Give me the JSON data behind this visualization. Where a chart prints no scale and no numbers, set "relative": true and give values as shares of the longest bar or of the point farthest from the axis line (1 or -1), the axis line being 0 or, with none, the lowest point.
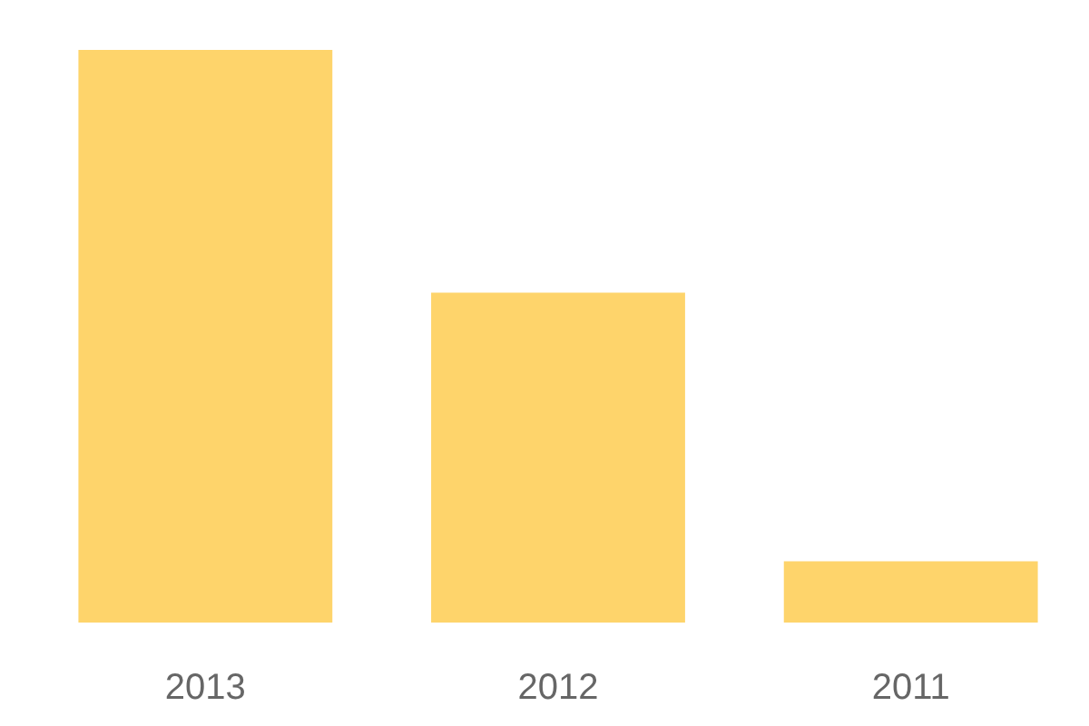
{
  "chart_data": {
    "type": "bar",
    "relative": true,
    "categories": [
      "2013",
      "2012",
      "2011"
    ],
    "values": [
      1,
      0.576,
      0.107
    ],
    "color": "#fed46b"
  }
}
